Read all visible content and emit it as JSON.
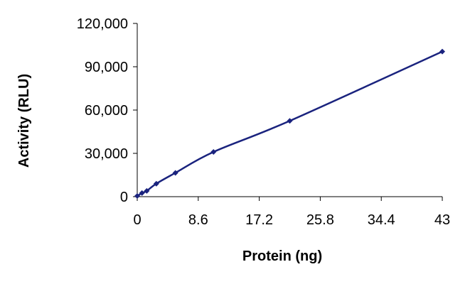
{
  "chart_data": {
    "type": "line",
    "title": "",
    "xlabel": "Protein (ng)",
    "ylabel": "Activity (RLU)",
    "xlim": [
      0,
      43
    ],
    "ylim": [
      0,
      120000
    ],
    "x_ticks": [
      0,
      8.6,
      17.2,
      25.8,
      34.4,
      43
    ],
    "x_tick_labels": [
      "0",
      "8.6",
      "17.2",
      "25.8",
      "34.4",
      "43"
    ],
    "y_ticks": [
      0,
      30000,
      60000,
      90000,
      120000
    ],
    "y_tick_labels": [
      "0",
      "30,000",
      "60,000",
      "90,000",
      "120,000"
    ],
    "grid": false,
    "legend": "none",
    "series": [
      {
        "x": [
          0,
          0.67,
          1.34,
          2.69,
          5.38,
          10.75,
          21.5,
          43
        ],
        "y": [
          500,
          2500,
          4000,
          9000,
          16500,
          31000,
          52500,
          100500
        ],
        "color": "#1a237e",
        "marker": "diamond"
      }
    ]
  }
}
